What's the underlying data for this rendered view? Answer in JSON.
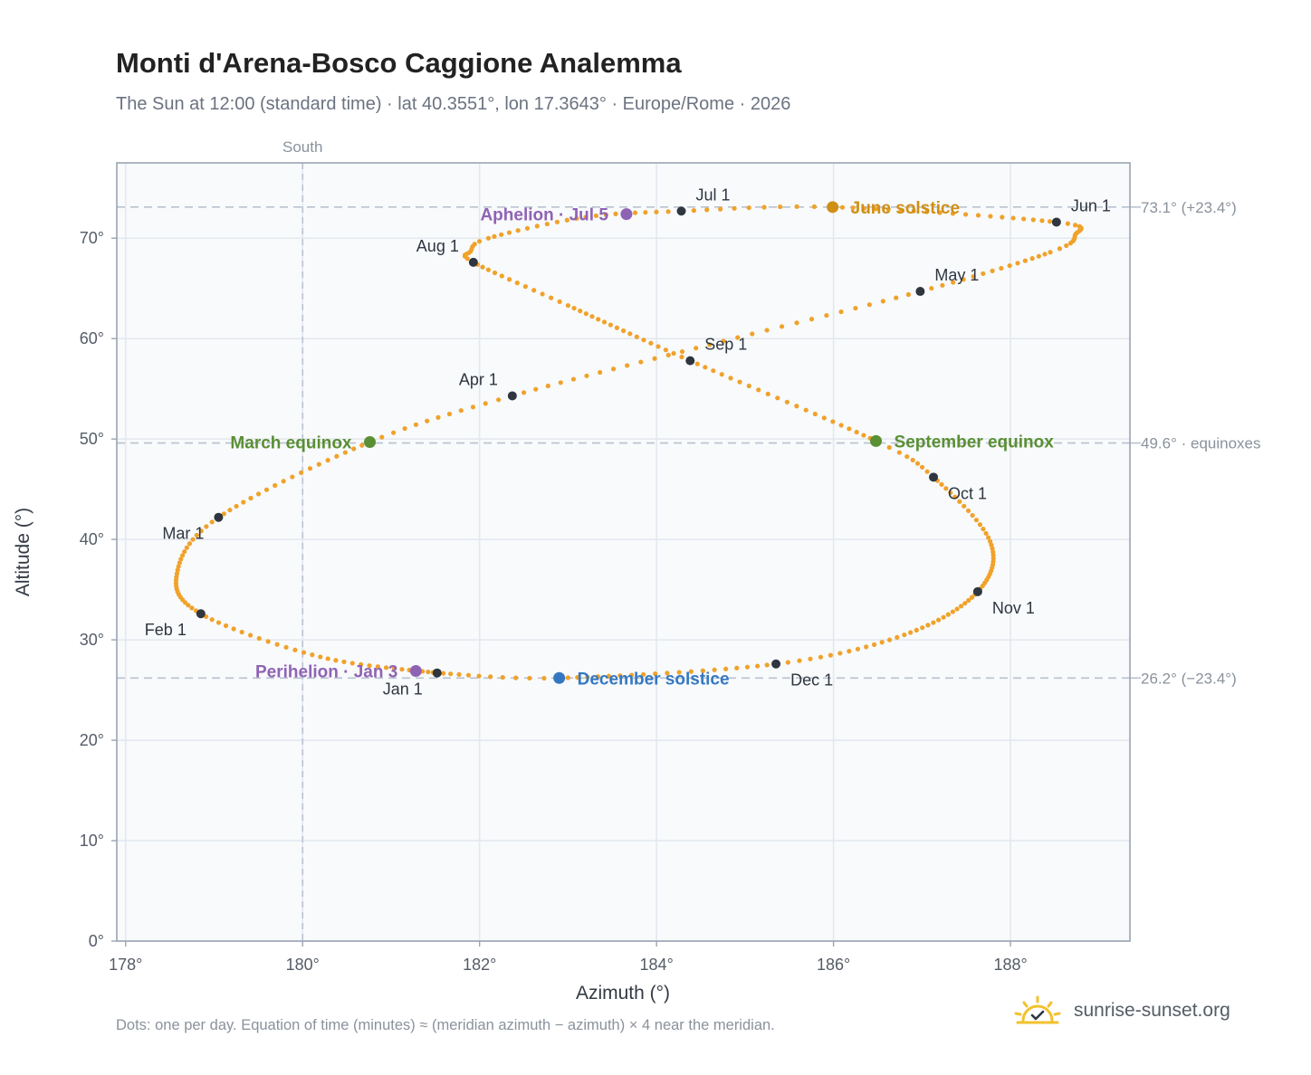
{
  "title": "Monti d'Arena-Bosco Caggione Analemma",
  "subtitle": "The Sun at 12:00 (standard time) · lat 40.3551°, lon 17.3643° · Europe/Rome · 2026",
  "footnote": "Dots: one per day. Equation of time (minutes) ≈ (meridian azimuth − azimuth) × 4 near the meridian.",
  "brand": {
    "text": "sunrise-sunset.org",
    "icon": "sun-logo-icon"
  },
  "chart_data": {
    "type": "scatter",
    "title": "Monti d'Arena-Bosco Caggione Analemma",
    "xlabel": "Azimuth (°)",
    "ylabel": "Altitude (°)",
    "xlim": [
      177.9,
      189.35
    ],
    "ylim": [
      0,
      77.5
    ],
    "x_ticks": [
      178,
      180,
      182,
      184,
      186,
      188
    ],
    "x_tick_labels": [
      "178°",
      "180°",
      "182°",
      "184°",
      "186°",
      "188°"
    ],
    "y_ticks": [
      0,
      10,
      20,
      30,
      40,
      50,
      60,
      70
    ],
    "y_tick_labels": [
      "0°",
      "10°",
      "20°",
      "30°",
      "40°",
      "50°",
      "60°",
      "70°"
    ],
    "grid": true,
    "meridian": {
      "azimuth": 180,
      "label": "South"
    },
    "reference_lines": [
      {
        "altitude": 73.1,
        "label": "73.1° (+23.4°)"
      },
      {
        "altitude": 49.6,
        "label": "49.6° · equinoxes"
      },
      {
        "altitude": 26.2,
        "label": "26.2° (−23.4°)"
      }
    ],
    "curve_color": "#f0a22a",
    "months": [
      {
        "label": "Jan 1",
        "az": 181.52,
        "alt": 26.7,
        "pos": "below-left"
      },
      {
        "label": "Feb 1",
        "az": 178.85,
        "alt": 32.6,
        "pos": "below-left"
      },
      {
        "label": "Mar 1",
        "az": 179.05,
        "alt": 42.2,
        "pos": "below-left"
      },
      {
        "label": "Apr 1",
        "az": 182.37,
        "alt": 54.3,
        "pos": "above-left"
      },
      {
        "label": "May 1",
        "az": 186.98,
        "alt": 64.7,
        "pos": "above-right"
      },
      {
        "label": "Jun 1",
        "az": 188.52,
        "alt": 71.6,
        "pos": "above-right"
      },
      {
        "label": "Jul 1",
        "az": 184.28,
        "alt": 72.7,
        "pos": "above-right"
      },
      {
        "label": "Aug 1",
        "az": 181.93,
        "alt": 67.6,
        "pos": "above-left"
      },
      {
        "label": "Sep 1",
        "az": 184.38,
        "alt": 57.8,
        "pos": "above-right"
      },
      {
        "label": "Oct 1",
        "az": 187.13,
        "alt": 46.2,
        "pos": "below-right"
      },
      {
        "label": "Nov 1",
        "az": 187.63,
        "alt": 34.8,
        "pos": "below-right"
      },
      {
        "label": "Dec 1",
        "az": 185.35,
        "alt": 27.6,
        "pos": "below-right"
      }
    ],
    "events": [
      {
        "label": "March equinox",
        "az": 180.76,
        "alt": 49.7,
        "color": "#5a8f33",
        "pos": "left"
      },
      {
        "label": "June solstice",
        "az": 185.99,
        "alt": 73.1,
        "color": "#d08f14",
        "pos": "right"
      },
      {
        "label": "September equinox",
        "az": 186.48,
        "alt": 49.8,
        "color": "#5a8f33",
        "pos": "right"
      },
      {
        "label": "December solstice",
        "az": 182.9,
        "alt": 26.2,
        "color": "#3578c1",
        "pos": "right"
      },
      {
        "label": "Perihelion · Jan 3",
        "az": 181.28,
        "alt": 26.9,
        "color": "#8f63b3",
        "pos": "left"
      },
      {
        "label": "Aphelion · Jul 5",
        "az": 183.66,
        "alt": 72.4,
        "color": "#8f63b3",
        "pos": "left"
      }
    ]
  }
}
